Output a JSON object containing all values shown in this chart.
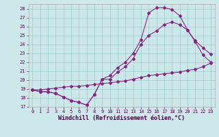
{
  "xlabel": "Windchill (Refroidissement éolien,°C)",
  "xlim": [
    -0.5,
    23.5
  ],
  "ylim": [
    17,
    28.5
  ],
  "yticks": [
    17,
    18,
    19,
    20,
    21,
    22,
    23,
    24,
    25,
    26,
    27,
    28
  ],
  "xticks": [
    0,
    1,
    2,
    3,
    4,
    5,
    6,
    7,
    8,
    9,
    10,
    11,
    12,
    13,
    14,
    15,
    16,
    17,
    18,
    19,
    20,
    21,
    22,
    23
  ],
  "bg_color": "#cce8e8",
  "line_color": "#882288",
  "grid_color": "#99cccc",
  "curve1_x": [
    0,
    1,
    2,
    3,
    4,
    5,
    6,
    7,
    8,
    9,
    10,
    11,
    12,
    13,
    14,
    15,
    16,
    17,
    18,
    19,
    20,
    21,
    22,
    23
  ],
  "curve1_y": [
    18.9,
    18.7,
    18.7,
    18.5,
    18.1,
    17.7,
    17.5,
    17.2,
    18.4,
    20.1,
    20.5,
    21.4,
    22.0,
    23.0,
    24.5,
    27.5,
    28.1,
    28.1,
    27.9,
    27.2,
    25.6,
    24.3,
    22.8,
    22.0
  ],
  "curve2_x": [
    0,
    1,
    2,
    3,
    4,
    5,
    6,
    7,
    8,
    9,
    10,
    11,
    12,
    13,
    14,
    15,
    16,
    17,
    18,
    19,
    20,
    21,
    22,
    23
  ],
  "curve2_y": [
    18.9,
    18.7,
    18.7,
    18.5,
    18.1,
    17.7,
    17.5,
    17.2,
    18.4,
    20.1,
    20.1,
    20.9,
    21.5,
    22.4,
    24.0,
    25.0,
    25.5,
    26.2,
    26.5,
    26.2,
    25.6,
    24.4,
    23.6,
    22.9
  ],
  "curve3_x": [
    0,
    1,
    2,
    3,
    4,
    5,
    6,
    7,
    8,
    9,
    10,
    11,
    12,
    13,
    14,
    15,
    16,
    17,
    18,
    19,
    20,
    21,
    22,
    23
  ],
  "curve3_y": [
    18.9,
    18.9,
    19.0,
    19.1,
    19.2,
    19.3,
    19.3,
    19.4,
    19.5,
    19.6,
    19.7,
    19.8,
    19.9,
    20.1,
    20.3,
    20.5,
    20.6,
    20.7,
    20.8,
    20.9,
    21.1,
    21.2,
    21.5,
    21.9
  ],
  "marker": "D",
  "markersize": 2.0,
  "linewidth": 0.8,
  "tick_fontsize": 5.0,
  "xlabel_fontsize": 6.0
}
